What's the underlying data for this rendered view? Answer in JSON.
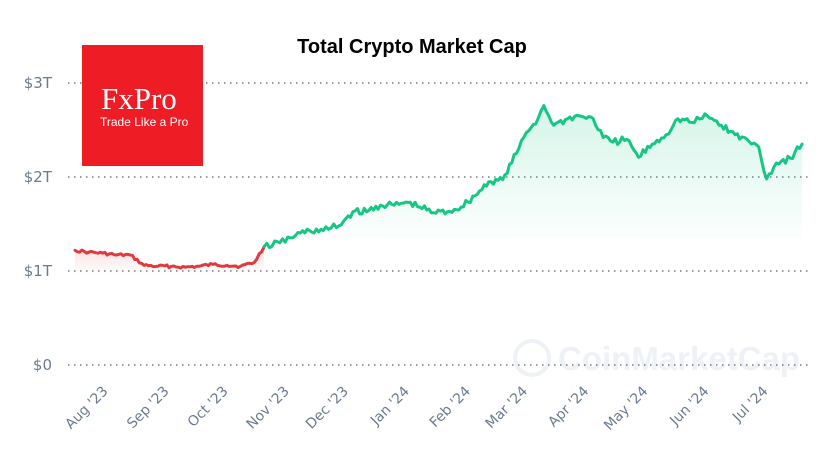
{
  "chart_data": {
    "type": "line",
    "title": "Total Crypto Market Cap",
    "xlabel": "",
    "ylabel": "",
    "ylim": [
      0,
      3
    ],
    "y_ticks": [
      {
        "value": 0,
        "label": "$0"
      },
      {
        "value": 1,
        "label": "$1T"
      },
      {
        "value": 2,
        "label": "$2T"
      },
      {
        "value": 3,
        "label": "$3T"
      }
    ],
    "x_start": "2023-07-20",
    "x_end": "2024-07-25",
    "x_ticks": [
      {
        "date": "2023-08-01",
        "label": "Aug '23"
      },
      {
        "date": "2023-09-01",
        "label": "Sep '23"
      },
      {
        "date": "2023-10-01",
        "label": "Oct '23"
      },
      {
        "date": "2023-11-01",
        "label": "Nov '23"
      },
      {
        "date": "2023-12-01",
        "label": "Dec '23"
      },
      {
        "date": "2024-01-01",
        "label": "Jan '24"
      },
      {
        "date": "2024-02-01",
        "label": "Feb '24"
      },
      {
        "date": "2024-03-01",
        "label": "Mar '24"
      },
      {
        "date": "2024-04-01",
        "label": "Apr '24"
      },
      {
        "date": "2024-05-01",
        "label": "May '24"
      },
      {
        "date": "2024-06-01",
        "label": "Jun '24"
      },
      {
        "date": "2024-07-01",
        "label": "Jul '24"
      }
    ],
    "grid": true,
    "series": [
      {
        "x": [
          "2023-07-20",
          "2023-07-27",
          "2023-08-03",
          "2023-08-10",
          "2023-08-17",
          "2023-08-24",
          "2023-08-31",
          "2023-09-07",
          "2023-09-14",
          "2023-09-21",
          "2023-09-28",
          "2023-10-05",
          "2023-10-12",
          "2023-10-19",
          "2023-10-24"
        ],
        "y": [
          1.22,
          1.2,
          1.19,
          1.17,
          1.17,
          1.06,
          1.05,
          1.05,
          1.04,
          1.05,
          1.07,
          1.06,
          1.05,
          1.09,
          1.26
        ],
        "color": "#e03a3e"
      },
      {
        "x": [
          "2023-10-24",
          "2023-11-01",
          "2023-11-09",
          "2023-11-16",
          "2023-11-23",
          "2023-12-01",
          "2023-12-08",
          "2023-12-15",
          "2023-12-22",
          "2023-12-29",
          "2024-01-05",
          "2024-01-11",
          "2024-01-18",
          "2024-01-25",
          "2024-02-01",
          "2024-02-08",
          "2024-02-15",
          "2024-02-22",
          "2024-02-29",
          "2024-03-05",
          "2024-03-11",
          "2024-03-14",
          "2024-03-19",
          "2024-03-26",
          "2024-04-01",
          "2024-04-08",
          "2024-04-13",
          "2024-04-18",
          "2024-04-25",
          "2024-05-01",
          "2024-05-08",
          "2024-05-15",
          "2024-05-21",
          "2024-05-28",
          "2024-06-05",
          "2024-06-12",
          "2024-06-19",
          "2024-06-26",
          "2024-07-01",
          "2024-07-05",
          "2024-07-10",
          "2024-07-17",
          "2024-07-23"
        ],
        "y": [
          1.26,
          1.3,
          1.38,
          1.43,
          1.43,
          1.48,
          1.63,
          1.63,
          1.7,
          1.7,
          1.73,
          1.68,
          1.62,
          1.63,
          1.68,
          1.8,
          1.95,
          1.97,
          2.25,
          2.47,
          2.62,
          2.76,
          2.55,
          2.62,
          2.65,
          2.62,
          2.42,
          2.37,
          2.4,
          2.21,
          2.35,
          2.45,
          2.62,
          2.58,
          2.65,
          2.55,
          2.45,
          2.38,
          2.32,
          1.98,
          2.15,
          2.2,
          2.35
        ],
        "color": "#16c784"
      }
    ]
  },
  "logo": {
    "name": "FxPro",
    "tagline": "Trade Like a Pro",
    "background": "#ee1c25"
  },
  "watermark": {
    "text": "CoinMarketCap"
  }
}
